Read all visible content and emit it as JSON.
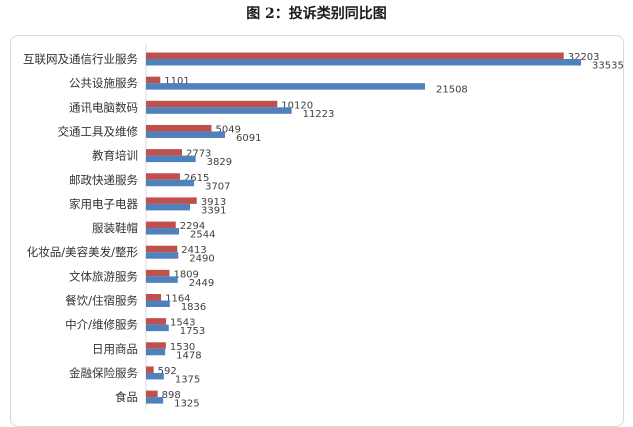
{
  "chart_data": {
    "type": "bar",
    "orientation": "horizontal",
    "title": "图 2：投诉类别同比图",
    "categories": [
      "互联网及通信行业服务",
      "公共设施服务",
      "通讯电脑数码",
      "交通工具及维修",
      "教育培训",
      "邮政快递服务",
      "家用电子电器",
      "服装鞋帽",
      "化妆品/美容美发/整形",
      "文体旅游服务",
      "餐饮/住宿服务",
      "中介/维修服务",
      "日用商品",
      "金融保险服务",
      "食品"
    ],
    "series": [
      {
        "values": [
          32203,
          1101,
          10120,
          5049,
          2773,
          2615,
          3913,
          2294,
          2413,
          1809,
          1164,
          1543,
          1530,
          592,
          898
        ],
        "color": "#c0504d"
      },
      {
        "values": [
          33535,
          21508,
          11223,
          6091,
          3829,
          3707,
          3391,
          2544,
          2490,
          2449,
          1836,
          1753,
          1478,
          1375,
          1325
        ],
        "color": "#4f81bd"
      }
    ],
    "xlim": [
      0,
      33535
    ],
    "grid": false,
    "data_labels": true
  }
}
